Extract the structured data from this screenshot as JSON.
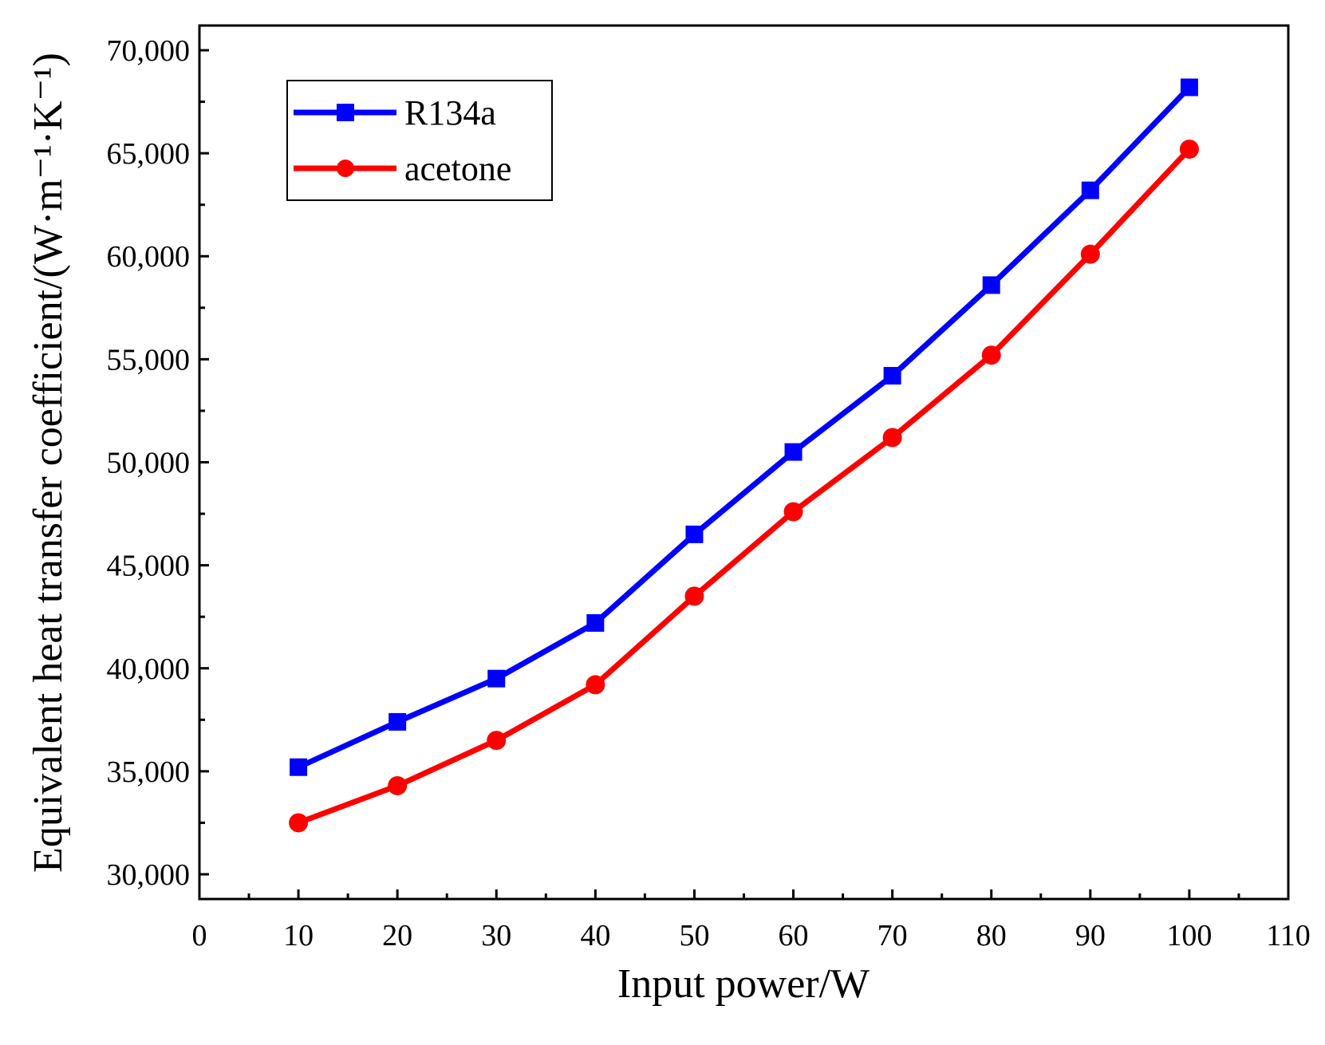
{
  "chart_data": {
    "type": "line",
    "xlabel": "Input power/W",
    "ylabel": "Equivalent heat transfer coefficient/(W·m⁻¹·K⁻¹)",
    "xlim": [
      0,
      110
    ],
    "ylim": [
      28800,
      71200
    ],
    "x_ticks": [
      "0",
      "10",
      "20",
      "30",
      "40",
      "50",
      "60",
      "70",
      "80",
      "90",
      "100",
      "110"
    ],
    "y_ticks": [
      "30,000",
      "35,000",
      "40,000",
      "45,000",
      "50,000",
      "55,000",
      "60,000",
      "65,000",
      "70,000"
    ],
    "grid": false,
    "legend_position": "top-left",
    "x": [
      10,
      20,
      30,
      40,
      50,
      60,
      70,
      80,
      90,
      100
    ],
    "series": [
      {
        "name": "R134a",
        "color": "#0000ff",
        "marker": "square",
        "values": [
          35200,
          37400,
          39500,
          42200,
          46500,
          50500,
          54200,
          58600,
          63200,
          68200
        ]
      },
      {
        "name": "acetone",
        "color": "#ff0000",
        "marker": "circle",
        "values": [
          32500,
          34300,
          36500,
          39200,
          43500,
          47600,
          51200,
          55200,
          60100,
          65200
        ]
      }
    ]
  }
}
